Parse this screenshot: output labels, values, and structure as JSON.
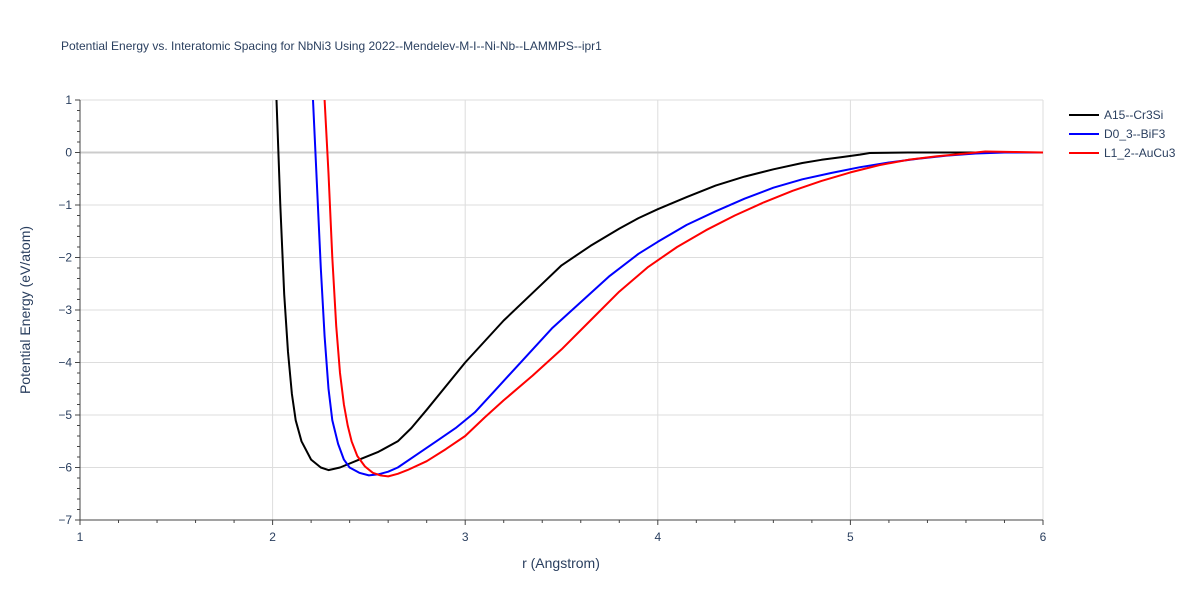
{
  "chart_data": {
    "type": "line",
    "title": "Potential Energy vs. Interatomic Spacing for NbNi3 Using 2022--Mendelev-M-I--Ni-Nb--LAMMPS--ipr1",
    "xlabel": "r (Angstrom)",
    "ylabel": "Potential Energy (eV/atom)",
    "xlim": [
      1,
      6
    ],
    "ylim": [
      -7,
      1
    ],
    "xticks": [
      1,
      2,
      3,
      4,
      5,
      6
    ],
    "yticks": [
      1,
      0,
      -1,
      -2,
      -3,
      -4,
      -5,
      -6,
      -7
    ],
    "xtick_labels": [
      "1",
      "2",
      "3",
      "4",
      "5",
      "6"
    ],
    "ytick_labels": [
      "1",
      "0",
      "−1",
      "−2",
      "−3",
      "−4",
      "−5",
      "−6",
      "−7"
    ],
    "grid": true,
    "legend_position": "top-right",
    "series": [
      {
        "name": "A15--Cr3Si",
        "color": "#000000",
        "x": [
          2.02,
          2.04,
          2.06,
          2.08,
          2.1,
          2.12,
          2.15,
          2.2,
          2.25,
          2.29,
          2.35,
          2.45,
          2.55,
          2.65,
          2.72,
          2.8,
          3.0,
          3.2,
          3.4,
          3.5,
          3.65,
          3.8,
          3.9,
          4.0,
          4.15,
          4.3,
          4.45,
          4.6,
          4.75,
          4.85,
          4.95,
          5.05,
          5.1,
          5.3,
          5.5,
          5.7,
          6.0
        ],
        "y": [
          1.0,
          -1.0,
          -2.7,
          -3.8,
          -4.6,
          -5.1,
          -5.5,
          -5.85,
          -6.0,
          -6.05,
          -6.0,
          -5.85,
          -5.7,
          -5.5,
          -5.25,
          -4.9,
          -4.0,
          -3.2,
          -2.5,
          -2.15,
          -1.78,
          -1.45,
          -1.25,
          -1.08,
          -0.85,
          -0.63,
          -0.46,
          -0.32,
          -0.2,
          -0.14,
          -0.09,
          -0.04,
          -0.01,
          0.0,
          0.0,
          0.0,
          0.0
        ]
      },
      {
        "name": "D0_3--BiF3",
        "color": "#0000ff",
        "x": [
          2.21,
          2.23,
          2.25,
          2.27,
          2.29,
          2.31,
          2.34,
          2.37,
          2.4,
          2.45,
          2.5,
          2.55,
          2.6,
          2.65,
          2.75,
          2.85,
          2.95,
          3.05,
          3.15,
          3.3,
          3.45,
          3.6,
          3.75,
          3.9,
          4.0,
          4.15,
          4.3,
          4.45,
          4.6,
          4.75,
          4.9,
          5.05,
          5.2,
          5.35,
          5.5,
          5.65,
          5.8,
          6.0
        ],
        "y": [
          1.0,
          -0.6,
          -2.2,
          -3.5,
          -4.5,
          -5.1,
          -5.55,
          -5.85,
          -6.0,
          -6.1,
          -6.15,
          -6.13,
          -6.08,
          -6.0,
          -5.75,
          -5.5,
          -5.25,
          -4.95,
          -4.55,
          -3.95,
          -3.35,
          -2.85,
          -2.35,
          -1.93,
          -1.7,
          -1.38,
          -1.12,
          -0.88,
          -0.67,
          -0.51,
          -0.39,
          -0.28,
          -0.19,
          -0.12,
          -0.06,
          -0.02,
          0.0,
          0.0
        ]
      },
      {
        "name": "L1_2--AuCu3",
        "color": "#ff0000",
        "x": [
          2.27,
          2.29,
          2.31,
          2.33,
          2.35,
          2.37,
          2.39,
          2.41,
          2.44,
          2.48,
          2.52,
          2.56,
          2.6,
          2.65,
          2.7,
          2.8,
          2.9,
          3.0,
          3.1,
          3.2,
          3.35,
          3.5,
          3.65,
          3.8,
          3.95,
          4.1,
          4.25,
          4.4,
          4.55,
          4.7,
          4.85,
          5.0,
          5.15,
          5.3,
          5.45,
          5.6,
          5.7,
          5.85,
          6.0
        ],
        "y": [
          1.0,
          -0.4,
          -2.0,
          -3.3,
          -4.2,
          -4.8,
          -5.2,
          -5.5,
          -5.78,
          -5.98,
          -6.1,
          -6.15,
          -6.17,
          -6.12,
          -6.05,
          -5.88,
          -5.65,
          -5.4,
          -5.05,
          -4.72,
          -4.25,
          -3.75,
          -3.2,
          -2.65,
          -2.18,
          -1.8,
          -1.48,
          -1.2,
          -0.95,
          -0.73,
          -0.54,
          -0.38,
          -0.24,
          -0.14,
          -0.07,
          -0.02,
          0.02,
          0.01,
          0.0
        ]
      }
    ]
  }
}
